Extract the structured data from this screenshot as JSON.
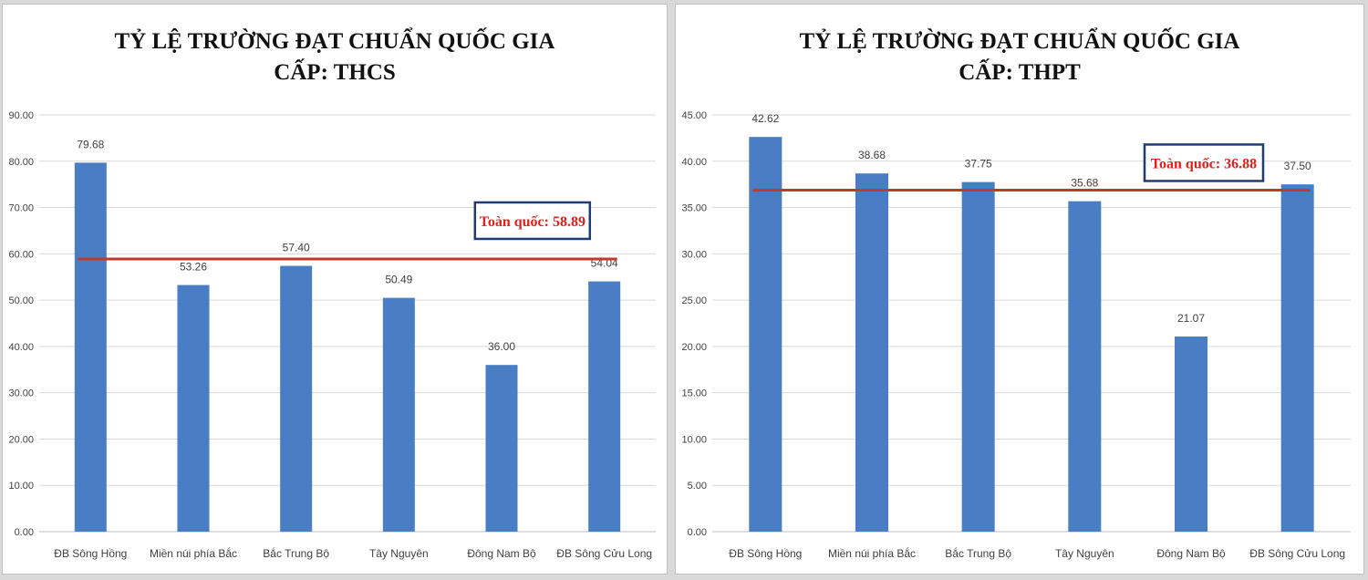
{
  "chart_data": [
    {
      "type": "bar",
      "title": "TỶ LỆ TRƯỜNG ĐẠT CHUẨN QUỐC GIA",
      "subtitle": "CẤP: THCS",
      "categories": [
        "ĐB Sông Hồng",
        "Miền núi phía Bắc",
        "Bắc Trung Bộ",
        "Tây Nguyên",
        "Đông Nam Bộ",
        "ĐB Sông Cửu Long"
      ],
      "values": [
        79.68,
        53.26,
        57.4,
        50.49,
        36.0,
        54.04
      ],
      "value_labels": [
        "79.68",
        "53.26",
        "57.40",
        "50.49",
        "36.00",
        "54.04"
      ],
      "ylim": [
        0,
        90
      ],
      "yticks": [
        "0.00",
        "10.00",
        "20.00",
        "30.00",
        "40.00",
        "50.00",
        "60.00",
        "70.00",
        "80.00",
        "90.00"
      ],
      "grid": true,
      "reference_line": {
        "value": 58.89,
        "label": "Toàn quốc: 58.89"
      },
      "colors": {
        "bar": "#4a7ec4",
        "line": "#c0392b",
        "label": "#e0201b",
        "box": "#1f3b70"
      }
    },
    {
      "type": "bar",
      "title": "TỶ LỆ TRƯỜNG ĐẠT CHUẨN QUỐC GIA",
      "subtitle": "CẤP: THPT",
      "categories": [
        "ĐB Sông Hồng",
        "Miền núi phía Bắc",
        "Bắc Trung Bộ",
        "Tây Nguyên",
        "Đông Nam Bộ",
        "ĐB Sông Cửu Long"
      ],
      "values": [
        42.62,
        38.68,
        37.75,
        35.68,
        21.07,
        37.5
      ],
      "value_labels": [
        "42.62",
        "38.68",
        "37.75",
        "35.68",
        "21.07",
        "37.50"
      ],
      "ylim": [
        0,
        45
      ],
      "yticks": [
        "0.00",
        "5.00",
        "10.00",
        "15.00",
        "20.00",
        "25.00",
        "30.00",
        "35.00",
        "40.00",
        "45.00"
      ],
      "grid": true,
      "reference_line": {
        "value": 36.88,
        "label": "Toàn quốc: 36.88"
      },
      "colors": {
        "bar": "#4a7ec4",
        "line": "#c0392b",
        "label": "#e0201b",
        "box": "#1f3b70"
      }
    }
  ]
}
